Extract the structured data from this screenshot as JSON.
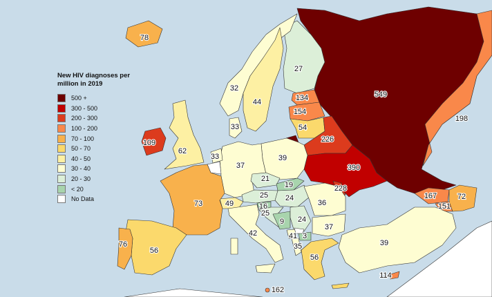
{
  "legend": {
    "title": "New HIV diagnoses per million in 2019",
    "items": [
      {
        "label": "500 +",
        "color": "#6e0000"
      },
      {
        "label": "300 - 500",
        "color": "#c10000"
      },
      {
        "label": "200 - 300",
        "color": "#dc3b1d"
      },
      {
        "label": "100 - 200",
        "color": "#f9884a"
      },
      {
        "label": "70 - 100",
        "color": "#f8b14c"
      },
      {
        "label": "50 - 70",
        "color": "#fbd96c"
      },
      {
        "label": "40 - 50",
        "color": "#fdf0a3"
      },
      {
        "label": "30 - 40",
        "color": "#fefdd2"
      },
      {
        "label": "20 - 30",
        "color": "#dcefd8"
      },
      {
        "label": "< 20",
        "color": "#a8d4ad"
      },
      {
        "label": "No Data",
        "color": "#ffffff"
      }
    ]
  },
  "colors": {
    "sea": "#c9dce9",
    "land_no_data": "#ffffff"
  },
  "countries": {
    "iceland": "78",
    "norway": "32",
    "sweden": "44",
    "finland": "27",
    "russia": "549",
    "russia_east": "198",
    "estonia": "134",
    "latvia": "154",
    "lithuania": "54",
    "belarus": "226",
    "ukraine": "390",
    "moldova": "228",
    "denmark": "33",
    "ireland": "109",
    "uk": "62",
    "netherlands": "33",
    "germany": "37",
    "poland": "39",
    "czechia": "21",
    "slovakia": "19",
    "austria": "25",
    "hungary": "24",
    "switzerland": "49",
    "slovenia": "16",
    "croatia": "25",
    "bosnia": "9",
    "serbia": "24",
    "romania": "36",
    "bulgaria": "37",
    "italy": "42",
    "montenegro": "41",
    "north_macedonia": "3",
    "albania": "35",
    "greece": "56",
    "turkey": "39",
    "cyprus": "114",
    "malta": "162",
    "france": "73",
    "spain": "56",
    "portugal": "76",
    "georgia": "167",
    "armenia": "151",
    "azerbaijan": "72"
  }
}
